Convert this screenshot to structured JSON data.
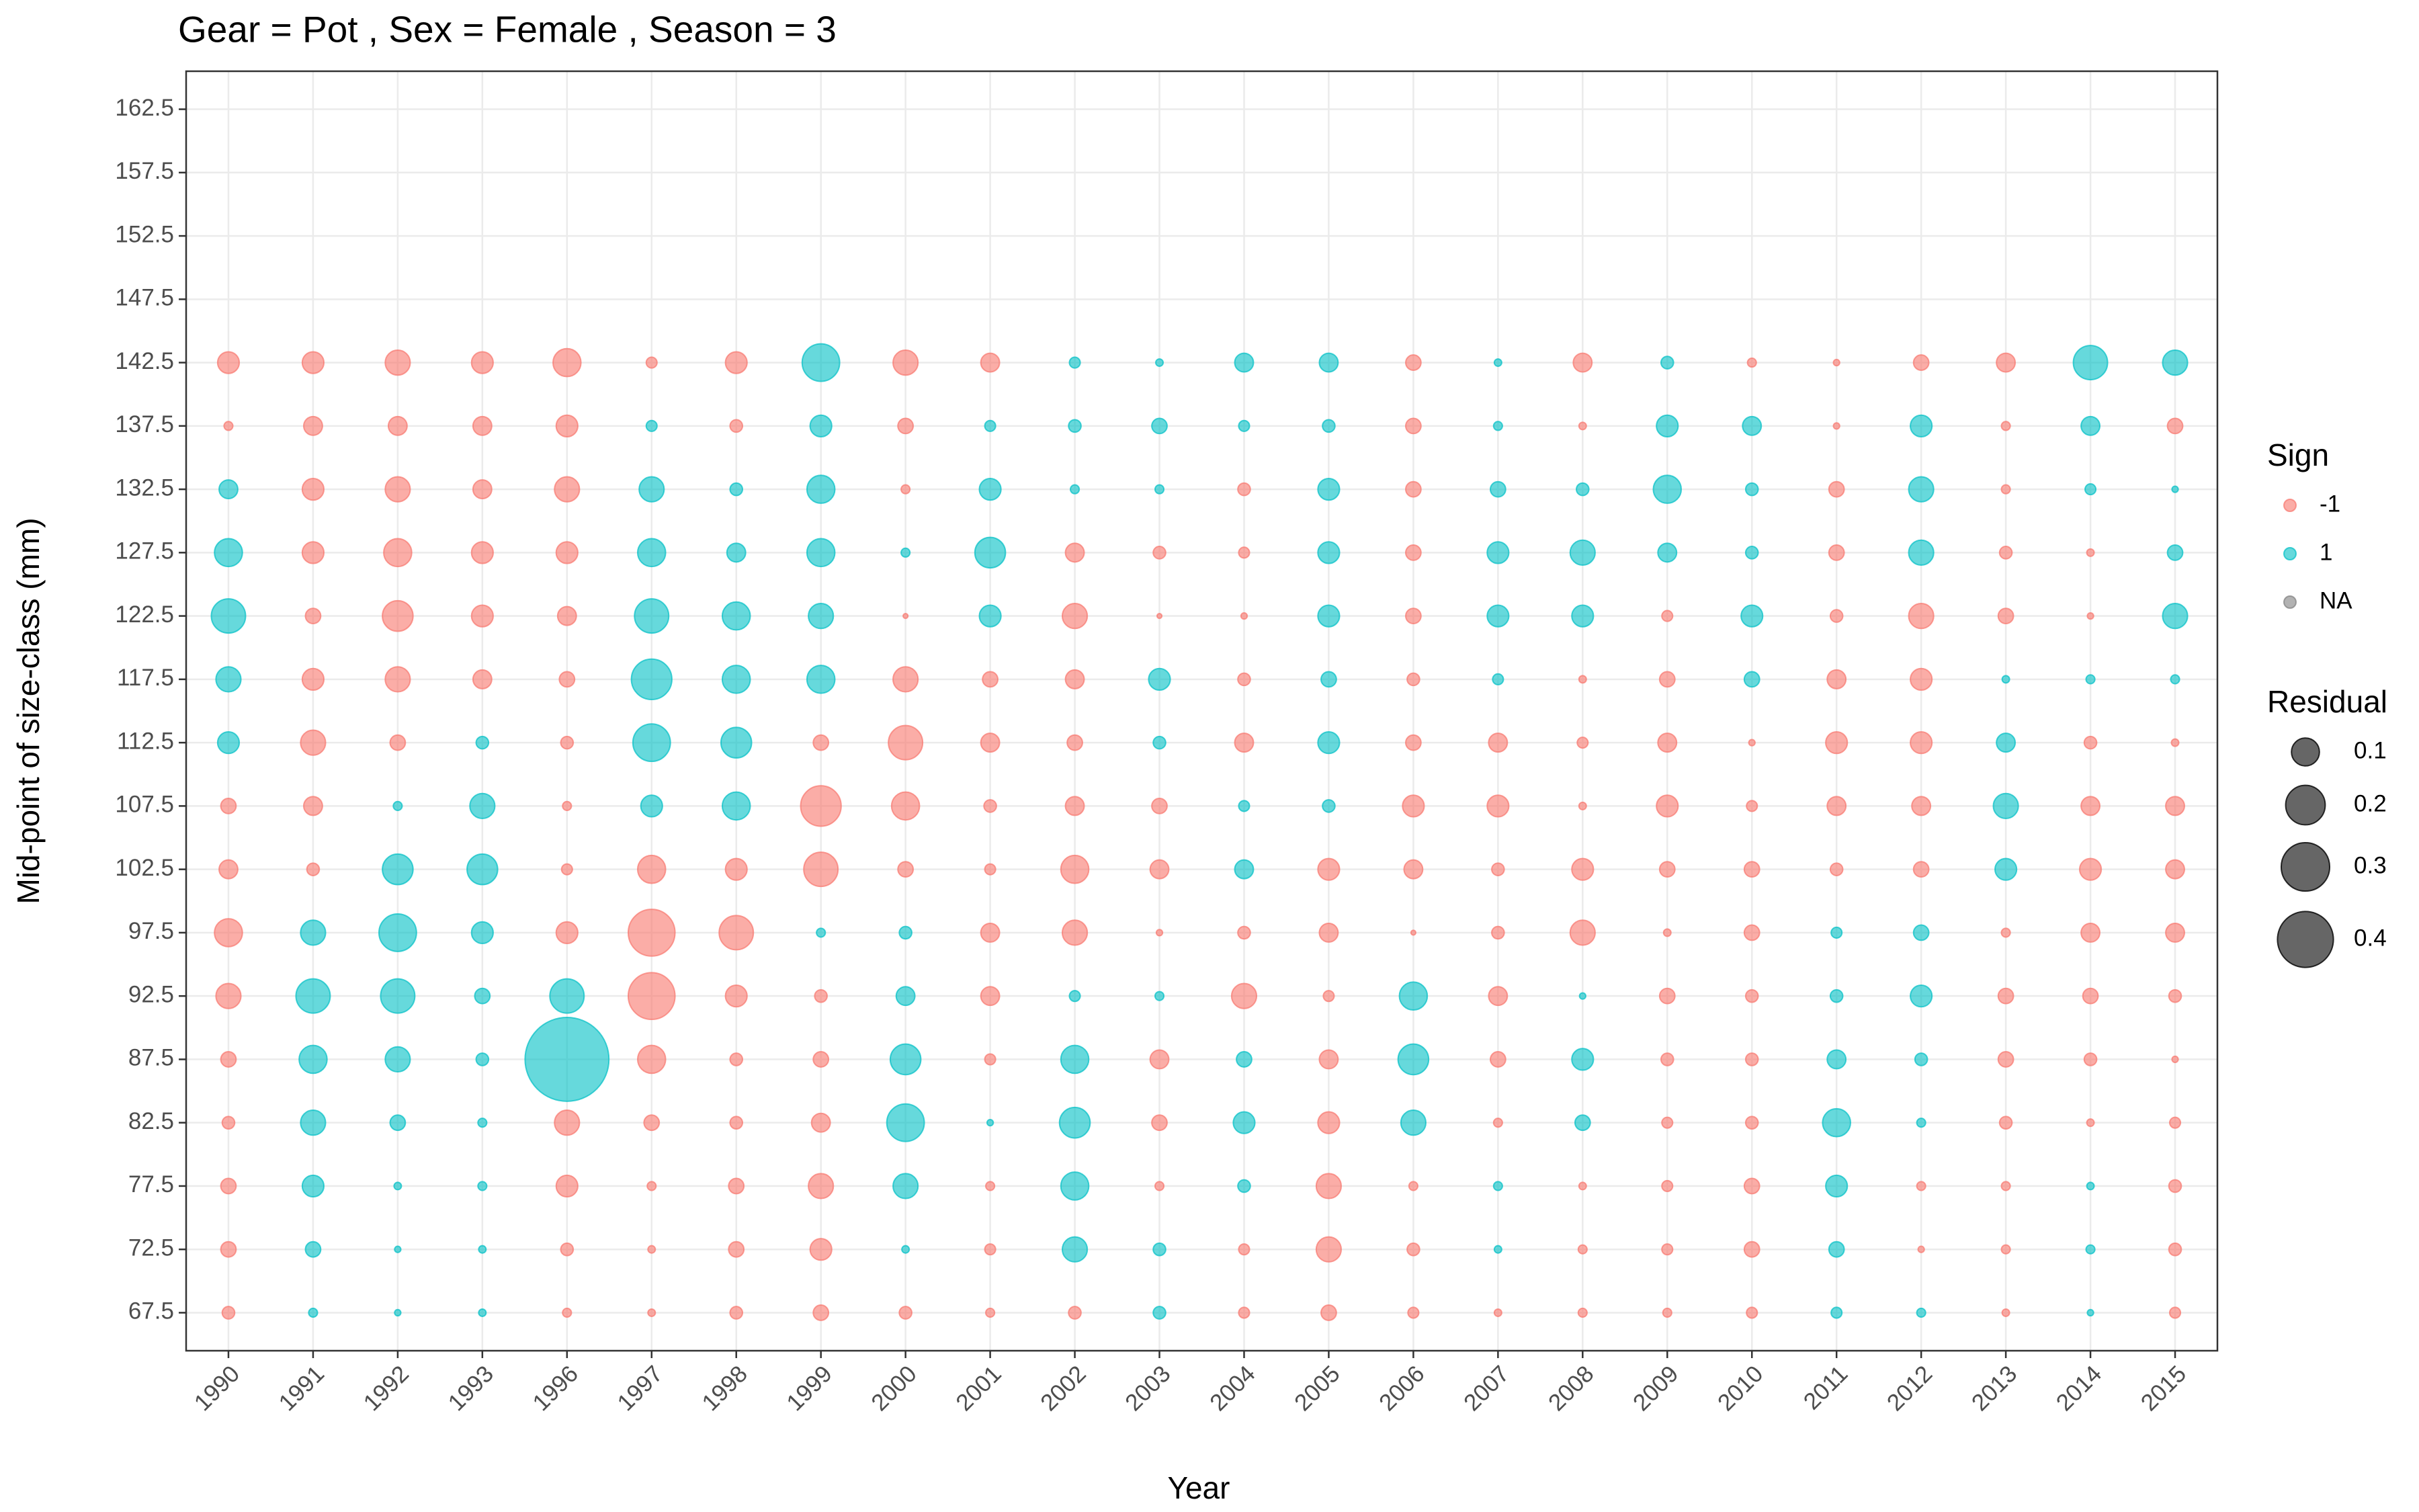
{
  "chart_data": {
    "type": "bubble",
    "title": "Gear = Pot , Sex = Female , Season = 3",
    "x_label": "Year",
    "y_label": "Mid-point of size-class (mm)",
    "categories": [
      "1990",
      "1991",
      "1992",
      "1993",
      "1996",
      "1997",
      "1998",
      "1999",
      "2000",
      "2001",
      "2002",
      "2003",
      "2004",
      "2005",
      "2006",
      "2007",
      "2008",
      "2009",
      "2010",
      "2011",
      "2012",
      "2013",
      "2014",
      "2015"
    ],
    "ylim": [
      64.5,
      165.5
    ],
    "yticks": [
      67.5,
      72.5,
      77.5,
      82.5,
      87.5,
      92.5,
      97.5,
      102.5,
      107.5,
      112.5,
      117.5,
      122.5,
      127.5,
      132.5,
      137.5,
      142.5,
      147.5,
      152.5,
      157.5,
      162.5
    ],
    "grid": true,
    "residual": [
      [
        0.02,
        0.03,
        0.03,
        0.02,
        0.03,
        0.08,
        0.1,
        0.045,
        0.03,
        0.06,
        0.08,
        0.15,
        0.1,
        0.045,
        0.01,
        0.06,
        null,
        null,
        null,
        null
      ],
      [
        0.01,
        0.03,
        0.06,
        0.08,
        0.1,
        0.15,
        0.08,
        0.02,
        0.045,
        0.08,
        0.06,
        0.03,
        0.06,
        0.06,
        0.045,
        0.06,
        null,
        null,
        null,
        null
      ],
      [
        0.005,
        0.005,
        0.007,
        0.03,
        0.08,
        0.15,
        0.18,
        0.12,
        0.01,
        0.03,
        0.08,
        0.12,
        0.1,
        0.08,
        0.045,
        0.08,
        null,
        null,
        null,
        null
      ],
      [
        0.007,
        0.007,
        0.01,
        0.01,
        0.02,
        0.03,
        0.06,
        0.12,
        0.08,
        0.02,
        0.045,
        0.06,
        0.06,
        0.045,
        0.045,
        0.06,
        null,
        null,
        null,
        null
      ],
      [
        0.01,
        0.02,
        0.06,
        0.08,
        0.9,
        0.15,
        0.06,
        0.015,
        0.01,
        0.02,
        0.03,
        0.045,
        0.06,
        0.08,
        0.06,
        0.1,
        null,
        null,
        null,
        null
      ],
      [
        0.007,
        0.007,
        0.01,
        0.03,
        0.1,
        0.28,
        0.28,
        0.1,
        0.06,
        0.18,
        0.21,
        0.15,
        0.1,
        0.08,
        0.015,
        0.015,
        null,
        null,
        null,
        null
      ],
      [
        0.02,
        0.03,
        0.03,
        0.02,
        0.02,
        0.06,
        0.15,
        0.06,
        0.1,
        0.12,
        0.1,
        0.1,
        0.045,
        0.02,
        0.02,
        0.06,
        null,
        null,
        null,
        null
      ],
      [
        0.03,
        0.06,
        0.08,
        0.045,
        0.03,
        0.02,
        0.01,
        0.15,
        0.21,
        0.03,
        0.1,
        0.08,
        0.1,
        0.1,
        0.06,
        0.18,
        null,
        null,
        null,
        null
      ],
      [
        0.02,
        0.007,
        0.08,
        0.18,
        0.12,
        0.045,
        0.02,
        0.03,
        0.1,
        0.15,
        0.08,
        0.003,
        0.01,
        0.01,
        0.03,
        0.08,
        null,
        null,
        null,
        null
      ],
      [
        0.01,
        0.015,
        0.01,
        0.005,
        0.015,
        0.045,
        0.045,
        0.015,
        0.02,
        0.045,
        0.03,
        0.06,
        0.12,
        0.06,
        0.015,
        0.045,
        null,
        null,
        null,
        null
      ],
      [
        0.02,
        0.08,
        0.1,
        0.12,
        0.1,
        0.015,
        0.08,
        0.1,
        0.045,
        0.03,
        0.045,
        0.08,
        0.045,
        0.01,
        0.02,
        0.015,
        null,
        null,
        null,
        null
      ],
      [
        0.02,
        0.02,
        0.01,
        0.03,
        0.045,
        0.01,
        0.005,
        0.045,
        0.03,
        0.02,
        0.06,
        0.003,
        0.02,
        0.01,
        0.03,
        0.007,
        null,
        null,
        null,
        null
      ],
      [
        0.015,
        0.015,
        0.02,
        0.06,
        0.03,
        0.08,
        0.02,
        0.045,
        0.015,
        0.045,
        0.02,
        0.005,
        0.015,
        0.02,
        0.015,
        0.045,
        null,
        null,
        null,
        null
      ],
      [
        0.03,
        0.08,
        0.08,
        0.06,
        0.045,
        0.015,
        0.045,
        0.06,
        0.02,
        0.06,
        0.03,
        0.06,
        0.06,
        0.06,
        0.02,
        0.045,
        null,
        null,
        null,
        null
      ],
      [
        0.015,
        0.02,
        0.01,
        0.08,
        0.12,
        0.1,
        0.003,
        0.045,
        0.06,
        0.03,
        0.02,
        0.03,
        0.03,
        0.03,
        0.03,
        0.03,
        null,
        null,
        null,
        null
      ],
      [
        0.007,
        0.007,
        0.01,
        0.01,
        0.03,
        0.045,
        0.02,
        0.02,
        0.06,
        0.045,
        0.015,
        0.06,
        0.06,
        0.03,
        0.01,
        0.007,
        null,
        null,
        null,
        null
      ],
      [
        0.01,
        0.01,
        0.007,
        0.03,
        0.06,
        0.005,
        0.08,
        0.06,
        0.007,
        0.015,
        0.007,
        0.06,
        0.08,
        0.02,
        0.007,
        0.045,
        null,
        null,
        null,
        null
      ],
      [
        0.01,
        0.015,
        0.015,
        0.015,
        0.02,
        0.03,
        0.007,
        0.03,
        0.06,
        0.045,
        0.03,
        0.015,
        0.045,
        0.1,
        0.06,
        0.02,
        null,
        null,
        null,
        null
      ],
      [
        0.015,
        0.03,
        0.03,
        0.02,
        0.02,
        0.02,
        0.03,
        0.03,
        0.015,
        0.005,
        0.03,
        0.06,
        0.02,
        0.02,
        0.045,
        0.01,
        null,
        null,
        null,
        null
      ],
      [
        0.015,
        0.03,
        0.06,
        0.1,
        0.045,
        0.02,
        0.015,
        0.02,
        0.045,
        0.06,
        0.045,
        0.02,
        0.03,
        0.03,
        0.005,
        0.005,
        null,
        null,
        null,
        null
      ],
      [
        0.01,
        0.005,
        0.01,
        0.01,
        0.02,
        0.06,
        0.03,
        0.03,
        0.045,
        0.06,
        0.06,
        0.08,
        0.08,
        0.08,
        0.06,
        0.03,
        null,
        null,
        null,
        null
      ],
      [
        0.007,
        0.01,
        0.01,
        0.02,
        0.03,
        0.03,
        0.01,
        0.06,
        0.08,
        0.045,
        0.007,
        0.03,
        0.02,
        0.01,
        0.01,
        0.045,
        null,
        null,
        null,
        null
      ],
      [
        0.005,
        0.01,
        0.007,
        0.007,
        0.02,
        0.03,
        0.045,
        0.06,
        0.045,
        0.02,
        0.01,
        0.005,
        0.007,
        0.015,
        0.045,
        0.15,
        null,
        null,
        null,
        null
      ],
      [
        0.015,
        0.02,
        0.02,
        0.015,
        0.005,
        0.02,
        0.045,
        0.045,
        0.045,
        0.007,
        0.01,
        0.08,
        0.03,
        0.005,
        0.03,
        0.08,
        null,
        null,
        null,
        null
      ]
    ],
    "sign": [
      [
        -1,
        -1,
        -1,
        -1,
        -1,
        -1,
        -1,
        -1,
        -1,
        1,
        1,
        1,
        1,
        1,
        -1,
        -1,
        null,
        null,
        null,
        null
      ],
      [
        1,
        1,
        1,
        1,
        1,
        1,
        1,
        -1,
        -1,
        -1,
        -1,
        -1,
        -1,
        -1,
        -1,
        -1,
        null,
        null,
        null,
        null
      ],
      [
        1,
        1,
        1,
        1,
        1,
        1,
        1,
        1,
        1,
        -1,
        -1,
        -1,
        -1,
        -1,
        -1,
        -1,
        null,
        null,
        null,
        null
      ],
      [
        1,
        1,
        1,
        1,
        1,
        1,
        1,
        1,
        1,
        1,
        -1,
        -1,
        -1,
        -1,
        -1,
        -1,
        null,
        null,
        null,
        null
      ],
      [
        -1,
        -1,
        -1,
        -1,
        1,
        1,
        -1,
        -1,
        -1,
        -1,
        -1,
        -1,
        -1,
        -1,
        -1,
        -1,
        null,
        null,
        null,
        null
      ],
      [
        -1,
        -1,
        -1,
        -1,
        -1,
        -1,
        -1,
        -1,
        1,
        1,
        1,
        1,
        1,
        1,
        1,
        -1,
        null,
        null,
        null,
        null
      ],
      [
        -1,
        -1,
        -1,
        -1,
        -1,
        -1,
        -1,
        -1,
        1,
        1,
        1,
        1,
        1,
        1,
        -1,
        -1,
        null,
        null,
        null,
        null
      ],
      [
        -1,
        -1,
        -1,
        -1,
        -1,
        -1,
        1,
        -1,
        -1,
        -1,
        1,
        1,
        1,
        1,
        1,
        1,
        null,
        null,
        null,
        null
      ],
      [
        -1,
        1,
        1,
        1,
        1,
        1,
        1,
        -1,
        -1,
        -1,
        -1,
        -1,
        1,
        -1,
        -1,
        -1,
        null,
        null,
        null,
        null
      ],
      [
        -1,
        -1,
        -1,
        1,
        -1,
        -1,
        -1,
        -1,
        -1,
        -1,
        -1,
        1,
        1,
        1,
        1,
        -1,
        null,
        null,
        null,
        null
      ],
      [
        -1,
        1,
        1,
        1,
        1,
        1,
        -1,
        -1,
        -1,
        -1,
        -1,
        -1,
        -1,
        1,
        1,
        1,
        null,
        null,
        null,
        null
      ],
      [
        1,
        1,
        -1,
        -1,
        -1,
        1,
        -1,
        -1,
        -1,
        1,
        1,
        -1,
        -1,
        1,
        1,
        1,
        null,
        null,
        null,
        null
      ],
      [
        -1,
        -1,
        1,
        1,
        1,
        -1,
        -1,
        1,
        1,
        -1,
        -1,
        -1,
        -1,
        -1,
        1,
        1,
        null,
        null,
        null,
        null
      ],
      [
        -1,
        -1,
        -1,
        -1,
        -1,
        -1,
        -1,
        -1,
        1,
        1,
        1,
        1,
        1,
        1,
        1,
        1,
        null,
        null,
        null,
        null
      ],
      [
        -1,
        -1,
        -1,
        1,
        1,
        1,
        -1,
        -1,
        -1,
        -1,
        -1,
        -1,
        -1,
        -1,
        -1,
        -1,
        null,
        null,
        null,
        null
      ],
      [
        -1,
        1,
        1,
        -1,
        -1,
        -1,
        -1,
        -1,
        -1,
        -1,
        1,
        1,
        1,
        1,
        1,
        1,
        null,
        null,
        null,
        null
      ],
      [
        -1,
        -1,
        -1,
        1,
        1,
        1,
        -1,
        -1,
        -1,
        -1,
        -1,
        1,
        1,
        1,
        -1,
        -1,
        null,
        null,
        null,
        null
      ],
      [
        -1,
        -1,
        -1,
        -1,
        -1,
        -1,
        -1,
        -1,
        -1,
        -1,
        -1,
        -1,
        1,
        1,
        1,
        1,
        null,
        null,
        null,
        null
      ],
      [
        -1,
        -1,
        -1,
        -1,
        -1,
        -1,
        -1,
        -1,
        -1,
        -1,
        1,
        1,
        1,
        1,
        1,
        -1,
        null,
        null,
        null,
        null
      ],
      [
        1,
        1,
        1,
        1,
        1,
        1,
        1,
        -1,
        -1,
        -1,
        -1,
        -1,
        -1,
        -1,
        -1,
        -1,
        null,
        null,
        null,
        null
      ],
      [
        1,
        -1,
        -1,
        1,
        1,
        1,
        1,
        -1,
        -1,
        -1,
        -1,
        -1,
        1,
        1,
        1,
        -1,
        null,
        null,
        null,
        null
      ],
      [
        -1,
        -1,
        -1,
        -1,
        -1,
        -1,
        -1,
        1,
        1,
        1,
        1,
        -1,
        -1,
        -1,
        -1,
        -1,
        null,
        null,
        null,
        null
      ],
      [
        1,
        1,
        1,
        -1,
        -1,
        -1,
        -1,
        -1,
        -1,
        -1,
        1,
        -1,
        -1,
        1,
        1,
        1,
        null,
        null,
        null,
        null
      ],
      [
        -1,
        -1,
        -1,
        -1,
        -1,
        -1,
        -1,
        -1,
        -1,
        -1,
        1,
        1,
        1,
        1,
        -1,
        1,
        null,
        null,
        null,
        null
      ]
    ],
    "sign_legend": {
      "title": "Sign",
      "labels": [
        "-1",
        "1",
        "NA"
      ],
      "colors": [
        "#F8766D",
        "#00BFC4",
        "#7f7f7f"
      ]
    },
    "size_legend": {
      "title": "Residual",
      "values": [
        0.1,
        0.2,
        0.3,
        0.4
      ],
      "color": "#333333"
    }
  }
}
